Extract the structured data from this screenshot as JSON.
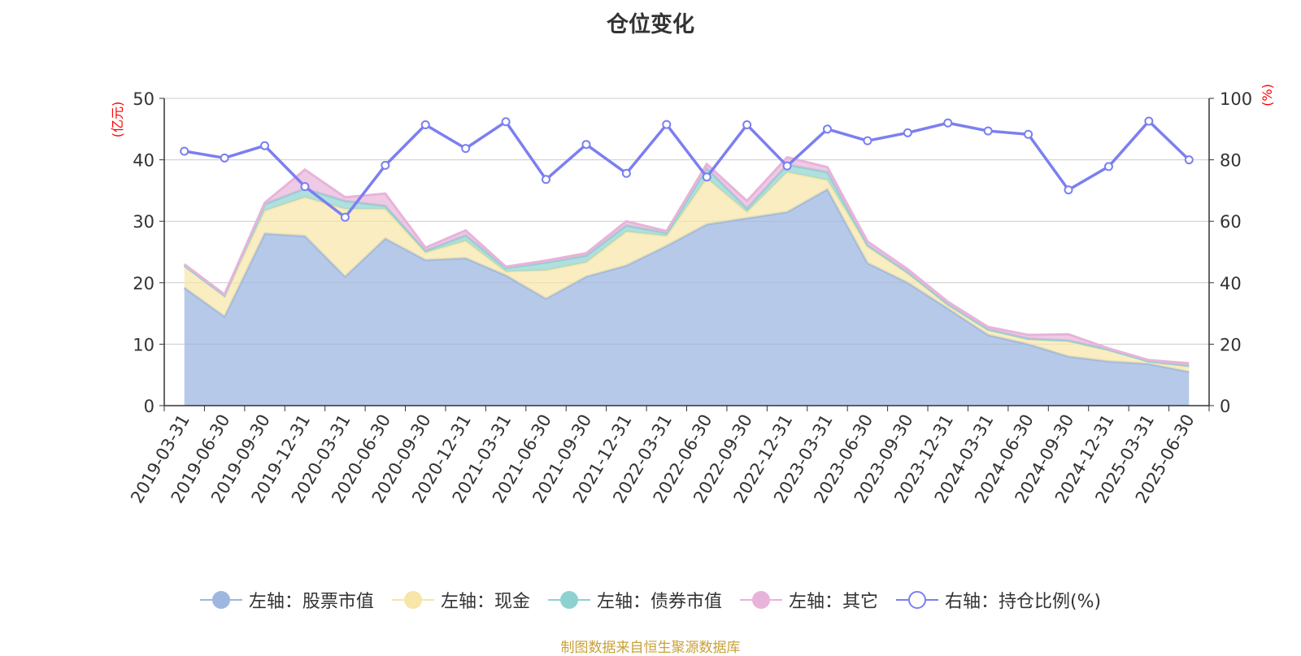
{
  "title": "仓位变化",
  "source_text": "制图数据来自恒生聚源数据库",
  "colors": {
    "stock": "#9db7e0",
    "cash": "#f7e6a7",
    "bond": "#8ed1d1",
    "other": "#e8b3da",
    "ratio": "#7b7ff0",
    "axis_unit": "#ff0000",
    "grid": "#cccccc",
    "axis": "#333333"
  },
  "chart_data": {
    "type": "area",
    "title": "仓位变化",
    "x": [
      "2019-03-31",
      "2019-06-30",
      "2019-09-30",
      "2019-12-31",
      "2020-03-31",
      "2020-06-30",
      "2020-09-30",
      "2020-12-31",
      "2021-03-31",
      "2021-06-30",
      "2021-09-30",
      "2021-12-31",
      "2022-03-31",
      "2022-06-30",
      "2022-09-30",
      "2022-12-31",
      "2023-03-31",
      "2023-06-30",
      "2023-09-30",
      "2023-12-31",
      "2024-03-31",
      "2024-06-30",
      "2024-09-30",
      "2024-12-31",
      "2025-03-31",
      "2025-06-30"
    ],
    "left_axis": {
      "unit": "(亿元)",
      "ylim": [
        0,
        50
      ],
      "ticks": [
        "0",
        "10",
        "20",
        "30",
        "40",
        "50"
      ]
    },
    "right_axis": {
      "unit": "(%)",
      "ylim": [
        0,
        100
      ],
      "ticks": [
        "0",
        "20",
        "40",
        "60",
        "80",
        "100"
      ]
    },
    "grid": true,
    "legend_position": "bottom-center",
    "series": [
      {
        "key": "stock",
        "name": "左轴：股票市值",
        "axis": "left",
        "kind": "stacked-area",
        "values": [
          19.2,
          14.5,
          28.0,
          27.6,
          21.0,
          27.2,
          23.7,
          24.0,
          21.2,
          17.4,
          21.0,
          22.8,
          26.0,
          29.5,
          30.5,
          31.5,
          35.2,
          23.2,
          20.0,
          15.8,
          11.5,
          10.0,
          8.0,
          7.2,
          6.8,
          5.5
        ]
      },
      {
        "key": "cash",
        "name": "左轴：现金",
        "axis": "left",
        "kind": "stacked-area",
        "values": [
          3.5,
          3.3,
          3.7,
          6.3,
          11.0,
          4.8,
          1.2,
          2.8,
          0.6,
          4.6,
          2.3,
          5.5,
          1.6,
          7.5,
          1.0,
          6.5,
          1.5,
          2.7,
          1.5,
          0.6,
          0.8,
          0.8,
          2.5,
          1.8,
          0.4,
          0.8
        ]
      },
      {
        "key": "bond",
        "name": "左轴：债券市值",
        "axis": "left",
        "kind": "stacked-area",
        "values": [
          0.1,
          0.1,
          1.1,
          1.4,
          1.3,
          0.5,
          0.3,
          0.9,
          0.6,
          1.3,
          1.1,
          1.0,
          0.5,
          1.6,
          0.6,
          1.2,
          1.3,
          0.2,
          0.2,
          0.1,
          0.1,
          0.1,
          0.1,
          0.1,
          0.0,
          0.2
        ]
      },
      {
        "key": "other",
        "name": "左轴：其它",
        "axis": "left",
        "kind": "stacked-area",
        "values": [
          0.2,
          0.2,
          0.2,
          3.1,
          0.6,
          2.0,
          0.5,
          0.8,
          0.2,
          0.3,
          0.4,
          0.7,
          0.3,
          0.7,
          1.2,
          1.2,
          0.8,
          0.6,
          0.5,
          0.4,
          0.4,
          0.6,
          1.0,
          0.2,
          0.2,
          0.4
        ]
      },
      {
        "key": "ratio",
        "name": "右轴：持仓比例(%)",
        "axis": "right",
        "kind": "line",
        "values": [
          82.8,
          80.6,
          84.6,
          71.3,
          61.3,
          78.2,
          91.4,
          83.7,
          92.4,
          73.6,
          85.0,
          75.6,
          91.5,
          74.4,
          91.4,
          78.0,
          90.0,
          86.2,
          88.8,
          92.0,
          89.4,
          88.3,
          70.2,
          77.8,
          92.6,
          80.0
        ]
      }
    ]
  }
}
